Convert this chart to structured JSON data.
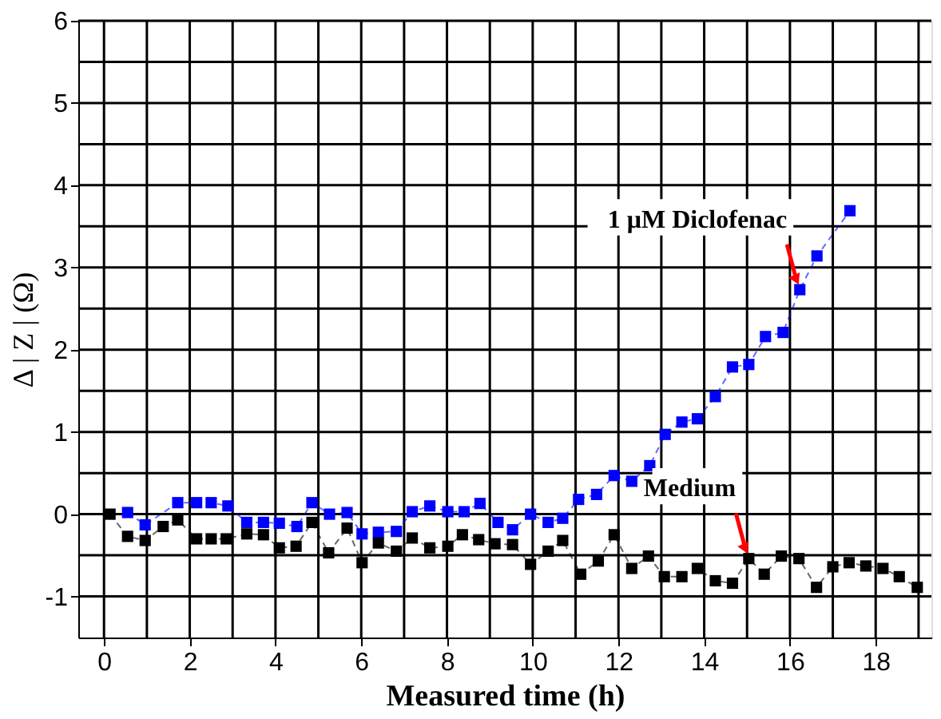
{
  "chart_data": {
    "type": "line",
    "xlabel": "Measured time (h)",
    "ylabel": "Δ | Z | (Ω)",
    "xlim": [
      -0.6,
      19.3
    ],
    "ylim": [
      -1.5,
      6
    ],
    "xticks": [
      0,
      {
        "value": 1,
        "label": null
      },
      2,
      {
        "value": 3,
        "label": null
      },
      4,
      {
        "value": 5,
        "label": null
      },
      6,
      {
        "value": 7,
        "label": null
      },
      8,
      {
        "value": 9,
        "label": null
      },
      10,
      {
        "value": 11,
        "label": null
      },
      12,
      {
        "value": 13,
        "label": null
      },
      14,
      {
        "value": 15,
        "label": null
      },
      16,
      {
        "value": 17,
        "label": null
      },
      18,
      {
        "value": 19,
        "label": null
      }
    ],
    "yticks": [
      -1,
      {
        "value": -0.5,
        "label": null
      },
      0,
      {
        "value": 0.5,
        "label": null
      },
      1,
      {
        "value": 1.5,
        "label": null
      },
      2,
      {
        "value": 2.5,
        "label": null
      },
      3,
      {
        "value": 3.5,
        "label": null
      },
      4,
      {
        "value": 4.5,
        "label": null
      },
      5,
      {
        "value": 5.5,
        "label": null
      },
      6
    ],
    "grid": true,
    "marker": "square",
    "line_style": "dashed",
    "series": [
      {
        "color": "#0000ff",
        "x": [
          0.55,
          0.96,
          1.72,
          2.16,
          2.5,
          2.89,
          3.33,
          3.72,
          4.09,
          4.5,
          4.85,
          5.26,
          5.67,
          6.02,
          6.4,
          6.82,
          7.19,
          7.6,
          8.02,
          8.4,
          8.77,
          9.19,
          9.53,
          9.95,
          10.36,
          10.7,
          11.07,
          11.49,
          11.9,
          12.31,
          12.73,
          13.09,
          13.48,
          13.84,
          14.26,
          14.66,
          15.04,
          15.43,
          15.84,
          16.23,
          16.63,
          17.4
        ],
        "values": [
          0.02,
          -0.13,
          0.14,
          0.14,
          0.14,
          0.1,
          -0.1,
          -0.1,
          -0.11,
          -0.15,
          0.14,
          0,
          0.02,
          -0.24,
          -0.22,
          -0.21,
          0.03,
          0.1,
          0.03,
          0.03,
          0.13,
          -0.1,
          -0.19,
          0,
          -0.1,
          -0.05,
          0.18,
          0.24,
          0.47,
          0.4,
          0.59,
          0.97,
          1.12,
          1.16,
          1.43,
          1.79,
          1.82,
          2.16,
          2.21,
          2.73,
          3.14,
          3.69
        ]
      },
      {
        "color": "#000000",
        "x": [
          0.14,
          0.55,
          0.96,
          1.38,
          1.72,
          2.16,
          2.5,
          2.85,
          3.33,
          3.72,
          4.09,
          4.48,
          4.85,
          5.24,
          5.67,
          6.02,
          6.4,
          6.82,
          7.19,
          7.6,
          8.02,
          8.36,
          8.74,
          9.12,
          9.53,
          9.95,
          10.36,
          10.7,
          11.12,
          11.53,
          11.9,
          12.31,
          12.7,
          13.07,
          13.48,
          13.84,
          14.26,
          14.66,
          15.04,
          15.4,
          15.8,
          16.21,
          16.62,
          17.0,
          17.38,
          17.77,
          18.17,
          18.55,
          18.97
        ],
        "values": [
          0,
          -0.27,
          -0.32,
          -0.15,
          -0.07,
          -0.3,
          -0.3,
          -0.3,
          -0.24,
          -0.25,
          -0.41,
          -0.39,
          -0.1,
          -0.47,
          -0.17,
          -0.59,
          -0.35,
          -0.45,
          -0.29,
          -0.41,
          -0.39,
          -0.25,
          -0.31,
          -0.36,
          -0.37,
          -0.61,
          -0.45,
          -0.32,
          -0.73,
          -0.57,
          -0.25,
          -0.66,
          -0.51,
          -0.76,
          -0.76,
          -0.66,
          -0.81,
          -0.84,
          -0.54,
          -0.73,
          -0.51,
          -0.54,
          -0.89,
          -0.64,
          -0.59,
          -0.63,
          -0.66,
          -0.76,
          -0.89
        ]
      }
    ],
    "annotations": [
      {
        "text": "1 μM Diclofenac",
        "x": 16.23,
        "y": 2.73
      },
      {
        "text": "Medium",
        "x": 15.04,
        "y": -0.54
      }
    ]
  }
}
